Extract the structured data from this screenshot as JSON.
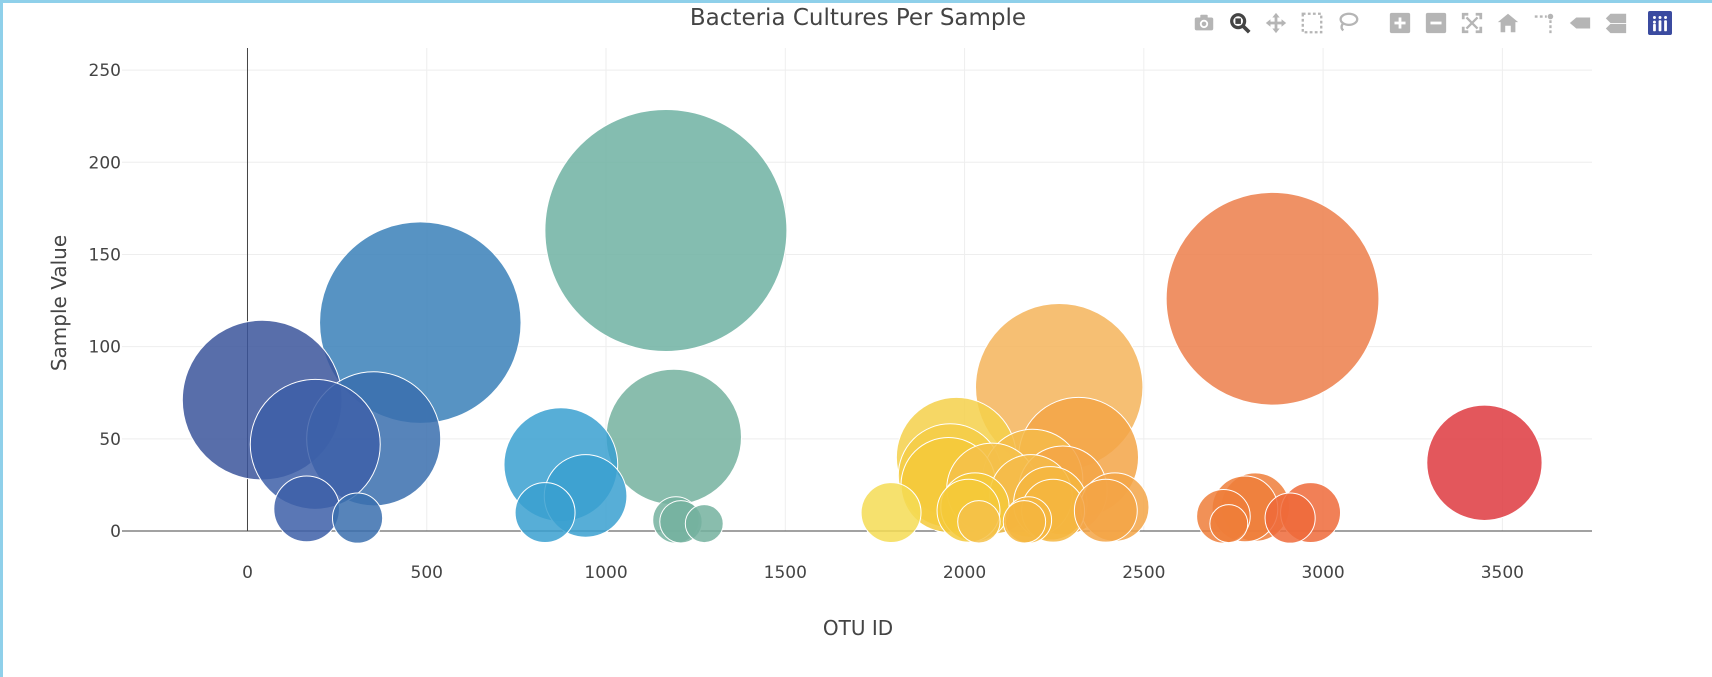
{
  "chart_data": {
    "type": "scatter",
    "title": "Bacteria Cultures Per Sample",
    "xlabel": "OTU ID",
    "ylabel": "Sample Value",
    "xlim": [
      -350,
      3750
    ],
    "ylim": [
      0,
      262
    ],
    "xticks": [
      0,
      500,
      1000,
      1500,
      2000,
      2500,
      3000,
      3500
    ],
    "yticks": [
      0,
      50,
      100,
      150,
      200,
      250
    ],
    "xtick_labels": [
      "0",
      "500",
      "1000",
      "1500",
      "2000",
      "2500",
      "3000",
      "3500"
    ],
    "ytick_labels": [
      "0",
      "50",
      "100",
      "150",
      "200",
      "250"
    ],
    "grid": true,
    "marker_size_encodes": "sample value",
    "colorscale": "Earth",
    "points": [
      {
        "x": 41,
        "y": 71,
        "color": "#3b559b"
      },
      {
        "x": 189,
        "y": 47,
        "color": "#3d5fa8"
      },
      {
        "x": 352,
        "y": 50,
        "color": "#3a6eae"
      },
      {
        "x": 482,
        "y": 113,
        "color": "#3a80b9"
      },
      {
        "x": 165,
        "y": 12,
        "color": "#3d5fa8"
      },
      {
        "x": 307,
        "y": 7,
        "color": "#3a6eae"
      },
      {
        "x": 830,
        "y": 10,
        "color": "#3aa0d0"
      },
      {
        "x": 874,
        "y": 36,
        "color": "#3aa0d0"
      },
      {
        "x": 943,
        "y": 19,
        "color": "#3aa0d0"
      },
      {
        "x": 1167,
        "y": 163,
        "color": "#6fb2a2"
      },
      {
        "x": 1189,
        "y": 51,
        "color": "#74b29f"
      },
      {
        "x": 1195,
        "y": 6,
        "color": "#74b29f"
      },
      {
        "x": 1209,
        "y": 5,
        "color": "#74b29f"
      },
      {
        "x": 1274,
        "y": 4,
        "color": "#74b29f"
      },
      {
        "x": 1795,
        "y": 10,
        "color": "#f4dc55"
      },
      {
        "x": 1977,
        "y": 40,
        "color": "#f5d04a"
      },
      {
        "x": 1960,
        "y": 30,
        "color": "#f5cc45"
      },
      {
        "x": 1955,
        "y": 25,
        "color": "#f5c93a"
      },
      {
        "x": 2011,
        "y": 11,
        "color": "#f5c93a"
      },
      {
        "x": 2029,
        "y": 13,
        "color": "#f5c93a"
      },
      {
        "x": 2077,
        "y": 23,
        "color": "#f5c14a"
      },
      {
        "x": 2040,
        "y": 5,
        "color": "#f5c14a"
      },
      {
        "x": 2190,
        "y": 28,
        "color": "#f5bb4a"
      },
      {
        "x": 2185,
        "y": 19,
        "color": "#f5bb4a"
      },
      {
        "x": 2239,
        "y": 15,
        "color": "#f5b640"
      },
      {
        "x": 2247,
        "y": 11,
        "color": "#f5b640"
      },
      {
        "x": 2178,
        "y": 6,
        "color": "#f5b640"
      },
      {
        "x": 2167,
        "y": 5,
        "color": "#f5b640"
      },
      {
        "x": 2264,
        "y": 78,
        "color": "#f4b45a"
      },
      {
        "x": 2318,
        "y": 40,
        "color": "#f3a547"
      },
      {
        "x": 2274,
        "y": 22,
        "color": "#f3a547"
      },
      {
        "x": 2394,
        "y": 11,
        "color": "#f3a547"
      },
      {
        "x": 2419,
        "y": 13,
        "color": "#f3a547"
      },
      {
        "x": 2722,
        "y": 8,
        "color": "#ef7e3a"
      },
      {
        "x": 2737,
        "y": 4,
        "color": "#ef7e3a"
      },
      {
        "x": 2782,
        "y": 12,
        "color": "#ef7e3a"
      },
      {
        "x": 2811,
        "y": 13,
        "color": "#ef7e3a"
      },
      {
        "x": 2859,
        "y": 126,
        "color": "#ec7e4a"
      },
      {
        "x": 2908,
        "y": 7,
        "color": "#ee6a3a"
      },
      {
        "x": 2965,
        "y": 10,
        "color": "#ee6a3a"
      },
      {
        "x": 3450,
        "y": 37,
        "color": "#de3a40"
      }
    ]
  },
  "modebar": {
    "icons": [
      "camera-icon",
      "zoom-icon",
      "pan-icon",
      "box-select-icon",
      "lasso-icon",
      "zoom-in-icon",
      "zoom-out-icon",
      "autoscale-icon",
      "reset-axes-icon",
      "spike-lines-icon",
      "hover-closest-icon",
      "hover-compare-icon",
      "plotly-logo-icon"
    ],
    "active_icon": "zoom-icon",
    "icon_color": "#b5b5b5",
    "active_color": "#444444",
    "logo_color": "#3b4ba0"
  },
  "colors": {
    "text": "#444444",
    "grid": "#eeeeee",
    "axis_line": "#444444",
    "frame_accent": "#8fd0ea"
  }
}
